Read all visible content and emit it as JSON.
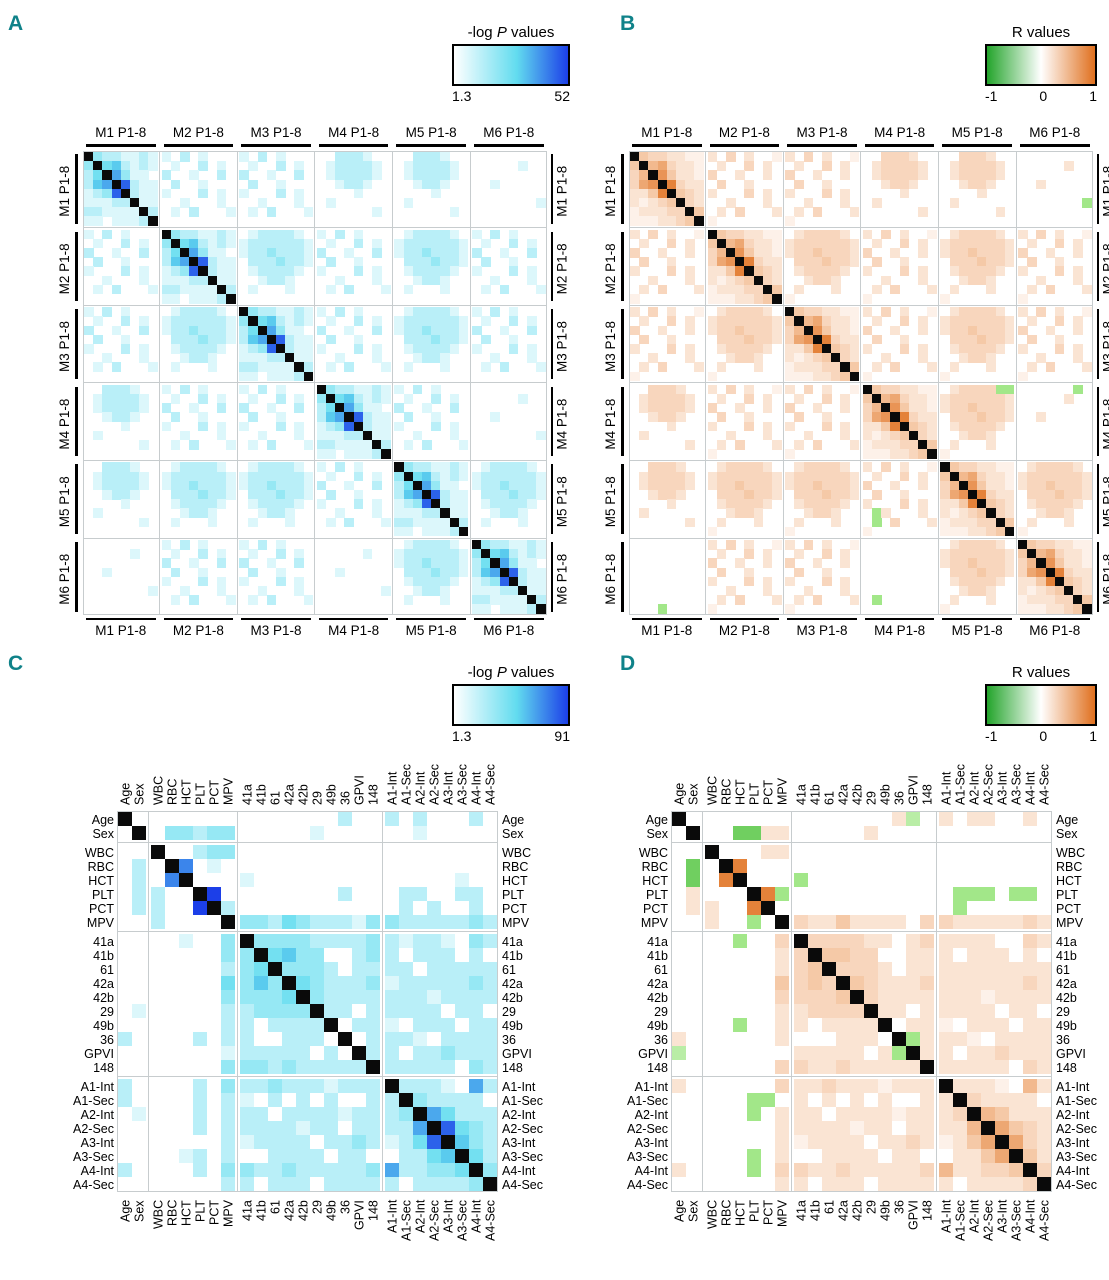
{
  "figure": {
    "background": "#FFFFFF"
  },
  "colors": {
    "panel_letter_teal": "#0F8289",
    "diagonal_black": "#0A0A0A",
    "pvalue_mid_cyan": "#62DCEF",
    "pvalue_high_blue": "#1C3FE8",
    "rvalue_mid_orange": "#F4C29C",
    "rvalue_high_orange": "#E0701E",
    "rvalue_mid_green": "#96E47A",
    "rvalue_high_green": "#23A42B",
    "grid_line_gray": "#C7CCCE"
  },
  "cell_encoding": "dot=blank(white), 1-9=positive intensity, a-i=negative(green) intensity, X=diagonal black cell",
  "chart_data": [
    {
      "id": "A",
      "panel_letter": "A",
      "type": "heatmap",
      "scale": "pvalue",
      "colorbar": {
        "title_prefix": "-log ",
        "title_italic": "P",
        "title_suffix": " values",
        "min": "1.3",
        "max": "52"
      },
      "row_groups": [
        "M1 P1-8",
        "M2 P1-8",
        "M3 P1-8",
        "M4 P1-8",
        "M5 P1-8",
        "M6 P1-8"
      ],
      "col_groups": [
        "M1 P1-8",
        "M2 P1-8",
        "M3 P1-8",
        "M4 P1-8",
        "M5 P1-8",
        "M6 P1-8"
      ],
      "group_size": 8,
      "templates": {
        "D": [
          "X3221121",
          "3X452121",
          "24X6311.",
          "256X8211",
          "1238X211",
          "11122X11",
          "221111X2",
          "11.1112X"
        ],
        "S": [
          "1.2.1...",
          ".1..2.1.",
          "2..1..2.",
          ".2..1...",
          "1...2.1.",
          "..1...1.",
          ".1.2...1",
          "........"
        ],
        "P": [
          ".122221.",
          "12222221",
          "12232221",
          ".2223221",
          ".122221.",
          "..1221..",
          ".1...1..",
          "........"
        ],
        "L": [
          "..2221..",
          ".122221.",
          ".122221.",
          "..1221..",
          "....1...",
          ".1......",
          "......1.",
          "........"
        ],
        "E": [
          "........",
          ".....1..",
          "........",
          "..1.....",
          "........",
          ".......1",
          "........",
          "........"
        ]
      },
      "block_map": [
        [
          "D",
          "S",
          "S",
          "L",
          "L",
          "E"
        ],
        [
          "S",
          "D",
          "P",
          "S",
          "P",
          "S"
        ],
        [
          "S",
          "P",
          "D",
          "S",
          "P",
          "S"
        ],
        [
          "L",
          "S",
          "S",
          "D",
          "S",
          "E"
        ],
        [
          "L",
          "P",
          "P",
          "S",
          "D",
          "P"
        ],
        [
          "E",
          "S",
          "S",
          "E",
          "P",
          "D"
        ]
      ]
    },
    {
      "id": "B",
      "panel_letter": "B",
      "type": "heatmap",
      "scale": "rvalue",
      "colorbar": {
        "title": "R values",
        "min": "-1",
        "mid": "0",
        "max": "1"
      },
      "row_groups": [
        "M1 P1-8",
        "M2 P1-8",
        "M3 P1-8",
        "M4 P1-8",
        "M5 P1-8",
        "M6 P1-8"
      ],
      "col_groups": [
        "M1 P1-8",
        "M2 P1-8",
        "M3 P1-8",
        "M4 P1-8",
        "M5 P1-8",
        "M6 P1-8"
      ],
      "group_size": 8,
      "templates": {
        "D": [
          "X4332211",
          "4X563221",
          "35X74221",
          "367X8322",
          "2248X432",
          "21234X32",
          "122233X4",
          "1112234X"
        ],
        "S": [
          "2.3.2..1",
          ".2..3.2.",
          "3..2..2.",
          ".3..2...",
          "2...3.2.",
          "..2...2.",
          ".2.3...2",
          "1......."
        ],
        "Sg": [
          "2.3.2..1",
          ".2..3.2.",
          "3..2..2.",
          ".3..2...",
          "2...3.2.",
          ".d2...2.",
          ".d.3...2",
          "1......."
        ],
        "P": [
          ".233332.",
          "23333332",
          "23343332",
          ".3334332",
          ".233332.",
          "..2332..",
          ".2...2..",
          "1......."
        ],
        "Pg": [
          ".23333dd",
          "23333332",
          "23343332",
          ".3334332",
          ".233332.",
          "..2332..",
          ".2...2..",
          "1......."
        ],
        "L": [
          "..3332..",
          ".233332.",
          ".233332.",
          "..2332..",
          "....2...",
          ".2......",
          "......2.",
          "........"
        ],
        "E": [
          "........",
          ".....2..",
          "........",
          "..2.....",
          "........",
          ".......d",
          "........",
          "........"
        ],
        "E2": [
          "......d.",
          ".....2..",
          "........",
          "..2.....",
          "........",
          "........",
          "........",
          "........"
        ],
        "E3": [
          "........",
          "........",
          "........",
          "........",
          "........",
          "........",
          "........",
          "...d...."
        ],
        "E4": [
          "........",
          "........",
          "........",
          "........",
          "........",
          "........",
          ".d......",
          "........"
        ]
      },
      "block_map": [
        [
          "D",
          "S",
          "S",
          "L",
          "L",
          "E"
        ],
        [
          "S",
          "D",
          "P",
          "S",
          "P",
          "S"
        ],
        [
          "S",
          "P",
          "D",
          "S",
          "P",
          "S"
        ],
        [
          "L",
          "S",
          "S",
          "D",
          "Pg",
          "E2"
        ],
        [
          "L",
          "P",
          "P",
          "Sg",
          "D",
          "P"
        ],
        [
          "E3",
          "S",
          "S",
          "E4",
          "P",
          "D"
        ]
      ]
    },
    {
      "id": "C",
      "panel_letter": "C",
      "type": "heatmap",
      "scale": "pvalue",
      "colorbar": {
        "title_prefix": "-log ",
        "title_italic": "P",
        "title_suffix": " values",
        "min": "1.3",
        "max": "91"
      },
      "labels": [
        "Age",
        "Sex",
        "WBC",
        "RBC",
        "HCT",
        "PLT",
        "PCT",
        "MPV",
        "41a",
        "41b",
        "61",
        "42a",
        "42b",
        "29",
        "49b",
        "36",
        "GPVI",
        "148",
        "A1-Int",
        "A1-Sec",
        "A2-Int",
        "A2-Sec",
        "A3-Int",
        "A3-Sec",
        "A4-Int",
        "A4-Sec"
      ],
      "group_bounds": [
        2,
        8,
        18
      ],
      "rows": [
        "X..............2..2.2...2.",
        ".X.33233.....1......1.....",
        "..X..233..................",
        ".2.X7.1...................",
        ".2.7X...1..............1..",
        ".22..X9........2...22..22.",
        ".22..9X2...........2.2..2.",
        "..2....X332432221332222232",
        "....1..3X33332222321221.32",
        ".......33X4533..232.222.2.",
        ".......234X3332.2222.22222",
        ".......4353X43222312222232",
        ".......33334X3222222212222",
        ".1.....223333X22.22222.22.",
        ".......22.2222X.221.222.22",
        "2....2.22..222.X.2221.2222",
        ".......122222.2.X22.223222",
        ".......3332322222X22222.32",
        "2....2.32232221222X2221.62",
        "2....2.21.2.2.2..22X32222.",
        ".1...2.222.222212223X64222",
        ".....2.22222122.22226X8432",
        ".......212222.22321248X532",
        "....12.2..2222.22..2245X42",
        "2....2.33223222223622334X3",
        ".......22.222.22222.22223X"
      ]
    },
    {
      "id": "D",
      "panel_letter": "D",
      "type": "heatmap",
      "scale": "rvalue",
      "colorbar": {
        "title": "R values",
        "min": "-1",
        "mid": "0",
        "max": "1"
      },
      "labels": [
        "Age",
        "Sex",
        "WBC",
        "RBC",
        "HCT",
        "PLT",
        "PCT",
        "MPV",
        "41a",
        "41b",
        "61",
        "42a",
        "42b",
        "29",
        "49b",
        "36",
        "GPVI",
        "148",
        "A1-Int",
        "A1-Sec",
        "A2-Int",
        "A2-Sec",
        "A3-Int",
        "A3-Sec",
        "A4-Int",
        "A4-Sec"
      ],
      "group_bounds": [
        2,
        8,
        18
      ],
      "rows": [
        "X..............2c.2.22..2.",
        ".X..ff22.....2............",
        "..X...22..................",
        ".f.X8.....................",
        ".f.8X...d.................",
        ".2...X8d...........ddd.dd.",
        ".22..8X............d......",
        "..2..d.X32242222.332222232",
        "....d..3X333322.232222..32",
        ".......23X4433..222.222.2.",
        ".......234X3332.2222222222",
        ".......4343X43222322222232",
        ".......33334X3222222212222",
        ".......223333X22.22222.22.",
        "....d..22.2222X.221.222.22",
        "2......2...222.Xd2221.2222",
        "c.......22222.2dX22.223222",
        ".......3322322222X22222.32",
        "2......32232221222X2221.52",
        ".....dd.2.2.2.2..22X32222.",
        ".....d.222.222212223X54222",
        ".......22222122.22225X6432",
        ".......212222.22321246X632",
        ".....d.2..2222.22..2246X42",
        "2....d.33223222223522334X3",
        ".......22.222.22222.22223X"
      ]
    }
  ]
}
